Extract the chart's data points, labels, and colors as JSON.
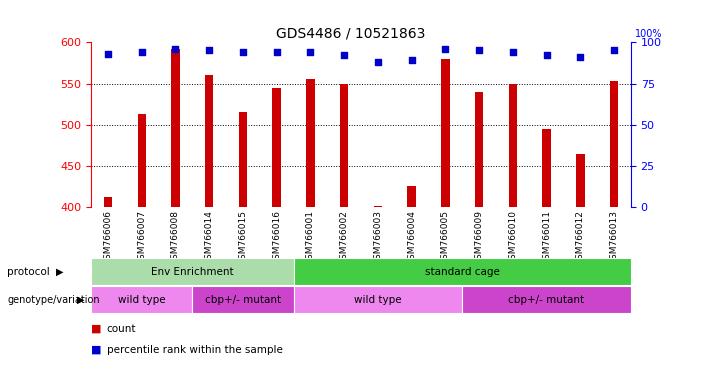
{
  "title": "GDS4486 / 10521863",
  "samples": [
    "GSM766006",
    "GSM766007",
    "GSM766008",
    "GSM766014",
    "GSM766015",
    "GSM766016",
    "GSM766001",
    "GSM766002",
    "GSM766003",
    "GSM766004",
    "GSM766005",
    "GSM766009",
    "GSM766010",
    "GSM766011",
    "GSM766012",
    "GSM766013"
  ],
  "counts": [
    412,
    513,
    592,
    560,
    515,
    545,
    555,
    549,
    402,
    426,
    580,
    540,
    549,
    495,
    465,
    553
  ],
  "percentiles": [
    93,
    94,
    96,
    95,
    94,
    94,
    94,
    92,
    88,
    89,
    96,
    95,
    94,
    92,
    91,
    95
  ],
  "ylim_left": [
    400,
    600
  ],
  "ylim_right": [
    0,
    100
  ],
  "yticks_left": [
    400,
    450,
    500,
    550,
    600
  ],
  "yticks_right": [
    0,
    25,
    50,
    75,
    100
  ],
  "bar_color": "#cc0000",
  "dot_color": "#0000cc",
  "protocol_groups": [
    {
      "label": "Env Enrichment",
      "start": 0,
      "end": 6,
      "color": "#aaddaa"
    },
    {
      "label": "standard cage",
      "start": 6,
      "end": 16,
      "color": "#44cc44"
    }
  ],
  "genotype_groups": [
    {
      "label": "wild type",
      "start": 0,
      "end": 3,
      "color": "#ee88ee"
    },
    {
      "label": "cbp+/- mutant",
      "start": 3,
      "end": 6,
      "color": "#cc44cc"
    },
    {
      "label": "wild type",
      "start": 6,
      "end": 11,
      "color": "#ee88ee"
    },
    {
      "label": "cbp+/- mutant",
      "start": 11,
      "end": 16,
      "color": "#cc44cc"
    }
  ],
  "legend_count_color": "#cc0000",
  "legend_pct_color": "#0000cc",
  "bg_color": "#ffffff",
  "xtick_bg_color": "#cccccc"
}
